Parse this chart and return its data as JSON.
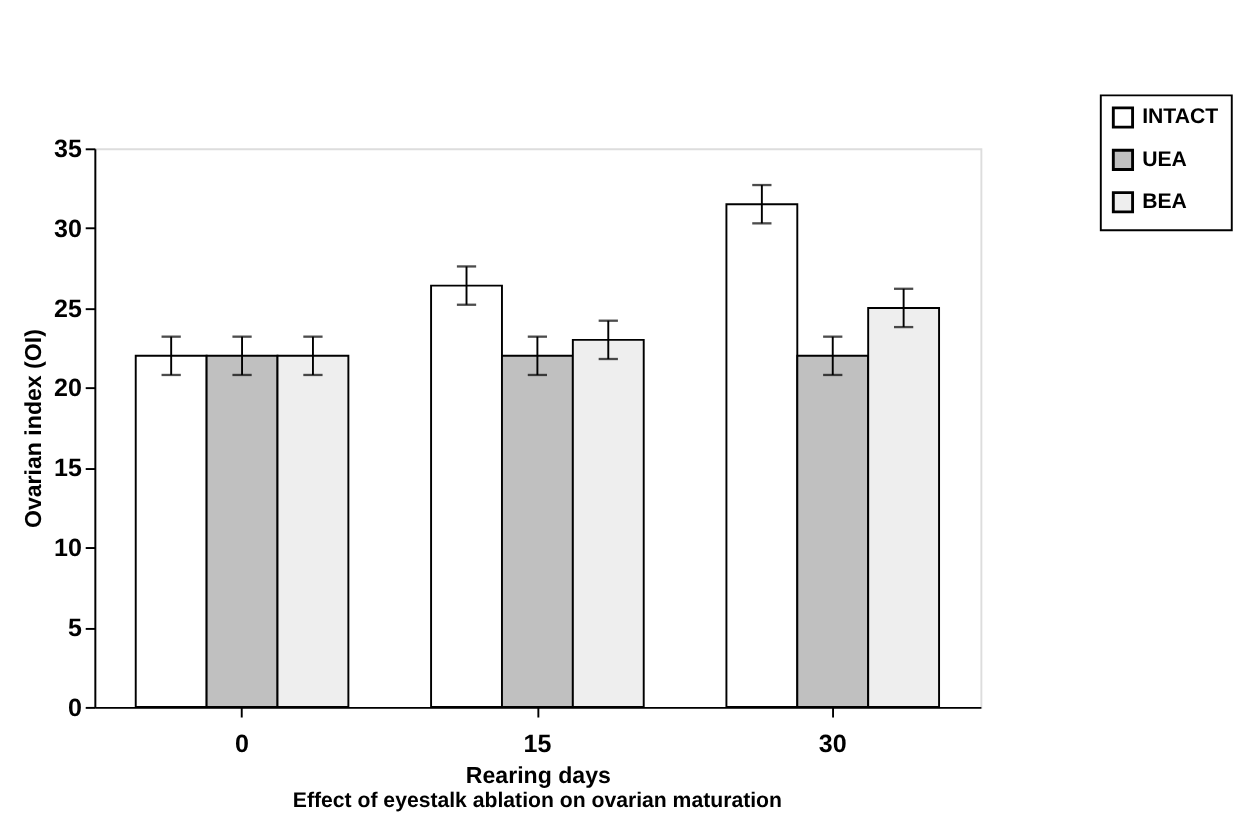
{
  "chart_data": {
    "type": "bar",
    "xlabel": "Rearing days",
    "ylabel": "Ovarian index (OI)",
    "categories": [
      "0",
      "15",
      "30"
    ],
    "series": [
      {
        "name": "INTACT",
        "color": "#ffffff",
        "values": [
          22,
          26.4,
          31.5
        ],
        "errors": [
          1.2,
          1.2,
          1.2
        ]
      },
      {
        "name": "UEA",
        "color": "#c0c0c0",
        "values": [
          22,
          22,
          22
        ],
        "errors": [
          1.2,
          1.2,
          1.2
        ]
      },
      {
        "name": "BEA",
        "color": "#eeeeee",
        "values": [
          22,
          23,
          25
        ],
        "errors": [
          1.2,
          1.2,
          1.2
        ]
      }
    ],
    "ylim": [
      0,
      35
    ],
    "yticks": [
      0,
      5,
      10,
      15,
      20,
      25,
      30,
      35
    ],
    "grid": false,
    "legend": "top right",
    "annotations": [
      "Effect of eyestalk ablation on ovarian maturation"
    ]
  }
}
